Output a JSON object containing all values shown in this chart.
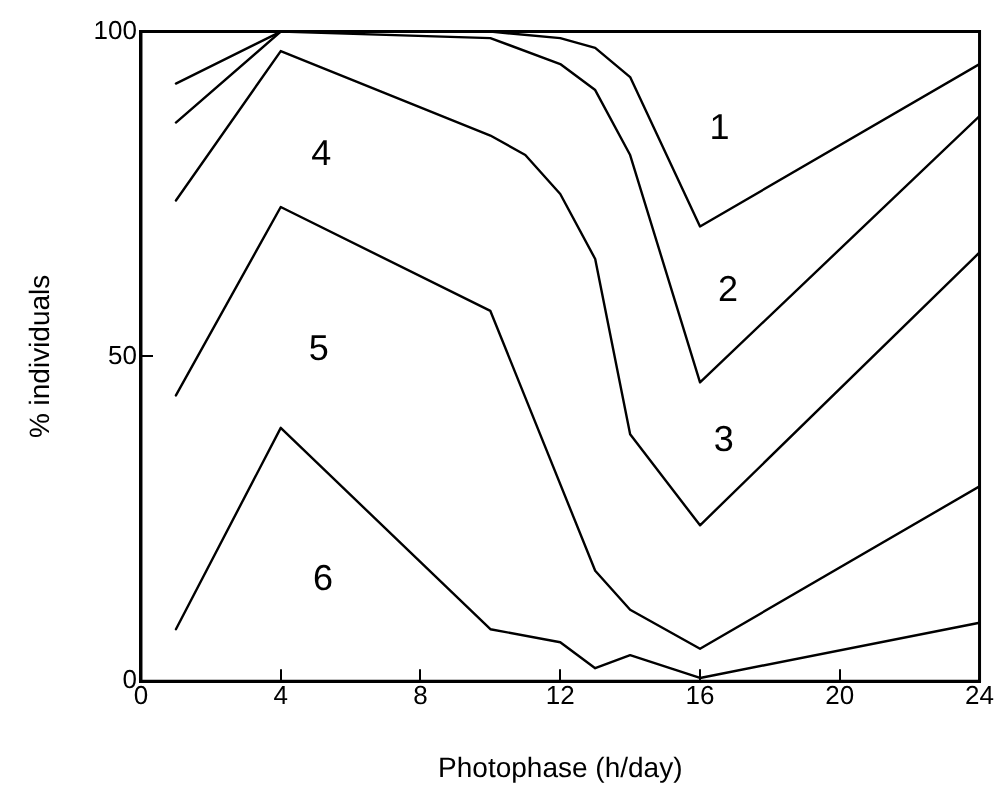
{
  "chart_data": {
    "type": "line",
    "xlabel": "Photophase (h/day)",
    "ylabel": "% individuals",
    "series": [
      {
        "color": "#000000",
        "x": [
          1,
          4,
          10,
          12,
          13,
          14,
          16,
          24
        ],
        "values": [
          92,
          100,
          100,
          99,
          97.5,
          93,
          70,
          95
        ]
      },
      {
        "color": "#000000",
        "x": [
          1,
          4,
          10,
          12,
          13,
          14,
          16,
          24
        ],
        "values": [
          86,
          100,
          99,
          95,
          91,
          81,
          46,
          87
        ]
      },
      {
        "color": "#000000",
        "x": [
          1,
          4,
          10,
          11,
          12,
          13,
          14,
          16,
          24
        ],
        "values": [
          74,
          97,
          84,
          81,
          75,
          65,
          38,
          24,
          66
        ]
      },
      {
        "color": "#000000",
        "x": [
          1,
          4,
          10,
          13,
          14,
          16,
          24
        ],
        "values": [
          44,
          73,
          57,
          17,
          11,
          5,
          30
        ]
      },
      {
        "color": "#000000",
        "x": [
          1,
          4,
          10,
          12,
          13,
          14,
          16,
          24
        ],
        "values": [
          8,
          39,
          8,
          6,
          2,
          4,
          0.5,
          9
        ]
      }
    ],
    "annotations": [
      "1",
      "2",
      "3",
      "4",
      "5",
      "6"
    ],
    "xlim": [
      0,
      24
    ],
    "xticks": [
      0,
      4,
      8,
      12,
      16,
      20,
      24
    ],
    "ylim": [
      0,
      100
    ],
    "yticks": [
      0,
      50,
      100
    ],
    "grid": false,
    "legend": false,
    "marker": "none",
    "line_style": "solid"
  }
}
